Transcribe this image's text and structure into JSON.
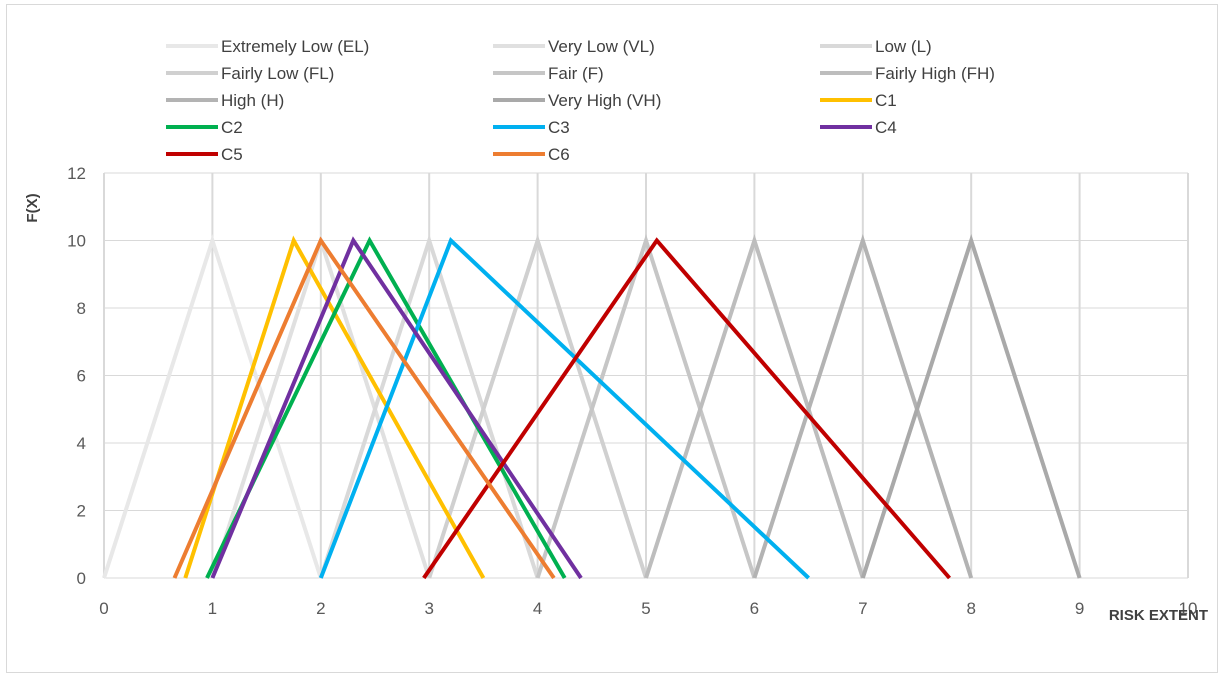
{
  "chart_data": {
    "type": "line",
    "title": "",
    "xlabel": "RISK EXTENT",
    "ylabel": "F(X)",
    "xlim": [
      0,
      10
    ],
    "ylim": [
      0,
      12
    ],
    "xticks": [
      0,
      1,
      2,
      3,
      4,
      5,
      6,
      7,
      8,
      9,
      10
    ],
    "yticks": [
      0,
      2,
      4,
      6,
      8,
      10,
      12
    ],
    "grid": "vertical",
    "legend_position": "top",
    "series": [
      {
        "name": "Extremely Low (EL)",
        "color": "#e8e8e8",
        "x": [
          0,
          1,
          2
        ],
        "y": [
          0,
          10,
          0
        ]
      },
      {
        "name": "Very Low (VL)",
        "color": "#e0e0e0",
        "x": [
          1,
          2,
          3
        ],
        "y": [
          0,
          10,
          0
        ]
      },
      {
        "name": "Low (L)",
        "color": "#d9d9d9",
        "x": [
          2,
          3,
          4
        ],
        "y": [
          0,
          10,
          0
        ]
      },
      {
        "name": "Fairly Low (FL)",
        "color": "#d0d0d0",
        "x": [
          3,
          4,
          5
        ],
        "y": [
          0,
          10,
          0
        ]
      },
      {
        "name": "Fair (F)",
        "color": "#c6c6c6",
        "x": [
          4,
          5,
          6
        ],
        "y": [
          0,
          10,
          0
        ]
      },
      {
        "name": "Fairly High (FH)",
        "color": "#bdbdbd",
        "x": [
          5,
          6,
          7
        ],
        "y": [
          0,
          10,
          0
        ]
      },
      {
        "name": "High (H)",
        "color": "#b3b3b3",
        "x": [
          6,
          7,
          8
        ],
        "y": [
          0,
          10,
          0
        ]
      },
      {
        "name": "Very High (VH)",
        "color": "#a9a9a9",
        "x": [
          7,
          8,
          9
        ],
        "y": [
          0,
          10,
          0
        ]
      },
      {
        "name": "C1",
        "color": "#ffc000",
        "x": [
          0.75,
          1.75,
          3.5
        ],
        "y": [
          0,
          10,
          0
        ]
      },
      {
        "name": "C2",
        "color": "#00b050",
        "x": [
          0.95,
          2.45,
          4.25
        ],
        "y": [
          0,
          10,
          0
        ]
      },
      {
        "name": "C3",
        "color": "#00b0f0",
        "x": [
          2.0,
          3.2,
          6.5
        ],
        "y": [
          0,
          10,
          0
        ]
      },
      {
        "name": "C4",
        "color": "#7030a0",
        "x": [
          1.0,
          2.3,
          4.4
        ],
        "y": [
          0,
          10,
          0
        ]
      },
      {
        "name": "C5",
        "color": "#c00000",
        "x": [
          2.95,
          5.1,
          7.8
        ],
        "y": [
          0,
          10,
          0
        ]
      },
      {
        "name": "C6",
        "color": "#ed7d31",
        "x": [
          0.65,
          2.0,
          4.15
        ],
        "y": [
          0,
          10,
          0
        ]
      }
    ]
  }
}
